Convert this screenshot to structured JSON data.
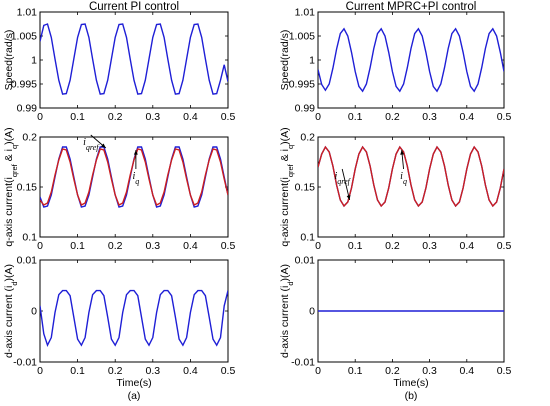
{
  "chart_data": [
    {
      "type": "line",
      "id": "a-speed",
      "title": "Current PI control",
      "ylabel": "Speed(rad/s)",
      "xlabel": "",
      "xlim": [
        0,
        0.5
      ],
      "ylim": [
        0.99,
        1.01
      ],
      "xticks": [
        "0",
        "0.1",
        "0.2",
        "0.3",
        "0.4",
        "0.5"
      ],
      "yticks": [
        "0.99",
        "0.995",
        "1",
        "1.005",
        "1.01"
      ],
      "series": [
        {
          "color": "#1f1fd6",
          "x": [
            0,
            0.01,
            0.02,
            0.03,
            0.04,
            0.05,
            0.06,
            0.07,
            0.08,
            0.09,
            0.1,
            0.11,
            0.12,
            0.13,
            0.14,
            0.15,
            0.16,
            0.17,
            0.18,
            0.19,
            0.2,
            0.21,
            0.22,
            0.23,
            0.24,
            0.25,
            0.26,
            0.27,
            0.28,
            0.29,
            0.3,
            0.31,
            0.32,
            0.33,
            0.34,
            0.35,
            0.36,
            0.37,
            0.38,
            0.39,
            0.4,
            0.41,
            0.42,
            0.43,
            0.44,
            0.45,
            0.46,
            0.47,
            0.48,
            0.49,
            0.5
          ],
          "y": [
            1.0039,
            1.0072,
            1.0075,
            1.0047,
            1.0002,
            0.9958,
            0.9929,
            0.993,
            0.9958,
            1.0002,
            1.0047,
            1.0074,
            1.0075,
            1.0047,
            1.0002,
            0.9958,
            0.9929,
            0.993,
            0.9958,
            1.0002,
            1.0047,
            1.0074,
            1.0075,
            1.0047,
            1.0002,
            0.9958,
            0.9929,
            0.993,
            0.9958,
            1.0002,
            1.0047,
            1.0074,
            1.0075,
            1.0047,
            1.0002,
            0.9958,
            0.9929,
            0.993,
            0.9958,
            1.0002,
            1.0047,
            1.0074,
            1.0075,
            1.0047,
            1.0002,
            0.9958,
            0.9929,
            0.993,
            0.9958,
            0.999,
            0.9955
          ]
        }
      ]
    },
    {
      "type": "line",
      "id": "b-speed",
      "title": "Current MPRC+PI control",
      "ylabel": "Speed(rad/s)",
      "xlabel": "",
      "xlim": [
        0,
        0.5
      ],
      "ylim": [
        0.99,
        1.01
      ],
      "xticks": [
        "0",
        "0.1",
        "0.2",
        "0.3",
        "0.4",
        "0.5"
      ],
      "yticks": [
        "0.99",
        "0.995",
        "1",
        "1.005",
        "1.01"
      ],
      "series": [
        {
          "color": "#1f1fd6",
          "x": [
            0,
            0.01,
            0.02,
            0.03,
            0.04,
            0.05,
            0.06,
            0.07,
            0.08,
            0.09,
            0.1,
            0.11,
            0.12,
            0.13,
            0.14,
            0.15,
            0.16,
            0.17,
            0.18,
            0.19,
            0.2,
            0.21,
            0.22,
            0.23,
            0.24,
            0.25,
            0.26,
            0.27,
            0.28,
            0.29,
            0.3,
            0.31,
            0.32,
            0.33,
            0.34,
            0.35,
            0.36,
            0.37,
            0.38,
            0.39,
            0.4,
            0.41,
            0.42,
            0.43,
            0.44,
            0.45,
            0.46,
            0.47,
            0.48,
            0.49,
            0.5
          ],
          "y": [
            0.998,
            0.9949,
            0.9937,
            0.995,
            0.9983,
            1.0023,
            1.0055,
            1.0065,
            1.005,
            1.0016,
            0.9976,
            0.9945,
            0.9935,
            0.995,
            0.9984,
            1.0024,
            1.0055,
            1.0065,
            1.005,
            1.0016,
            0.9976,
            0.9945,
            0.9935,
            0.995,
            0.9984,
            1.0024,
            1.0055,
            1.0065,
            1.005,
            1.0016,
            0.9976,
            0.9945,
            0.9935,
            0.995,
            0.9984,
            1.0024,
            1.0055,
            1.0065,
            1.005,
            1.0016,
            0.9976,
            0.9945,
            0.9935,
            0.995,
            0.9984,
            1.0024,
            1.0055,
            1.0065,
            1.005,
            1.0016,
            0.9976
          ]
        }
      ]
    },
    {
      "type": "line",
      "id": "a-iq",
      "title": "",
      "ylabel": "q-axis current(i_qref & i_q)(A)",
      "xlabel": "",
      "xlim": [
        0,
        0.5
      ],
      "ylim": [
        0.1,
        0.2
      ],
      "xticks": [
        "0",
        "0.1",
        "0.2",
        "0.3",
        "0.4",
        "0.5"
      ],
      "yticks": [
        "0.1",
        "0.15",
        "0.2"
      ],
      "series": [
        {
          "color": "#1f1fd6",
          "x": [
            0,
            0.01,
            0.02,
            0.03,
            0.04,
            0.05,
            0.06,
            0.07,
            0.08,
            0.09,
            0.1,
            0.11,
            0.12,
            0.13,
            0.14,
            0.15,
            0.16,
            0.17,
            0.18,
            0.19,
            0.2,
            0.21,
            0.22,
            0.23,
            0.24,
            0.25,
            0.26,
            0.27,
            0.28,
            0.29,
            0.3,
            0.31,
            0.32,
            0.33,
            0.34,
            0.35,
            0.36,
            0.37,
            0.38,
            0.39,
            0.4,
            0.41,
            0.42,
            0.43,
            0.44,
            0.45,
            0.46,
            0.47,
            0.48,
            0.49,
            0.5
          ],
          "y": [
            0.14,
            0.13,
            0.131,
            0.142,
            0.16,
            0.178,
            0.19,
            0.19,
            0.178,
            0.16,
            0.142,
            0.13,
            0.131,
            0.142,
            0.16,
            0.178,
            0.19,
            0.19,
            0.178,
            0.16,
            0.142,
            0.13,
            0.131,
            0.142,
            0.16,
            0.178,
            0.19,
            0.19,
            0.178,
            0.16,
            0.142,
            0.13,
            0.131,
            0.142,
            0.16,
            0.178,
            0.19,
            0.19,
            0.178,
            0.16,
            0.142,
            0.13,
            0.131,
            0.142,
            0.16,
            0.178,
            0.19,
            0.19,
            0.178,
            0.16,
            0.142
          ]
        },
        {
          "color": "#cc1f1f",
          "x": [
            0,
            0.01,
            0.02,
            0.03,
            0.04,
            0.05,
            0.06,
            0.07,
            0.08,
            0.09,
            0.1,
            0.11,
            0.12,
            0.13,
            0.14,
            0.15,
            0.16,
            0.17,
            0.18,
            0.19,
            0.2,
            0.21,
            0.22,
            0.23,
            0.24,
            0.25,
            0.26,
            0.27,
            0.28,
            0.29,
            0.3,
            0.31,
            0.32,
            0.33,
            0.34,
            0.35,
            0.36,
            0.37,
            0.38,
            0.39,
            0.4,
            0.41,
            0.42,
            0.43,
            0.44,
            0.45,
            0.46,
            0.47,
            0.48,
            0.49,
            0.5
          ],
          "y": [
            0.137,
            0.132,
            0.134,
            0.145,
            0.162,
            0.177,
            0.188,
            0.187,
            0.175,
            0.158,
            0.142,
            0.132,
            0.134,
            0.145,
            0.162,
            0.177,
            0.188,
            0.187,
            0.175,
            0.158,
            0.142,
            0.132,
            0.134,
            0.145,
            0.162,
            0.177,
            0.188,
            0.187,
            0.175,
            0.158,
            0.142,
            0.132,
            0.134,
            0.145,
            0.162,
            0.177,
            0.188,
            0.187,
            0.175,
            0.158,
            0.142,
            0.132,
            0.134,
            0.145,
            0.162,
            0.177,
            0.188,
            0.187,
            0.175,
            0.158,
            0.142
          ]
        }
      ],
      "annotations": [
        {
          "label": "i_qref",
          "x": 0.135,
          "y": 0.192,
          "target_x": 0.175,
          "target_y": 0.189
        },
        {
          "label": "i_q",
          "x": 0.255,
          "y": 0.158,
          "target_x": 0.255,
          "target_y": 0.187
        }
      ]
    },
    {
      "type": "line",
      "id": "b-iq",
      "title": "",
      "ylabel": "q-axis current(i_qref & i_q)(A)",
      "xlabel": "",
      "xlim": [
        0,
        0.5
      ],
      "ylim": [
        0.1,
        0.2
      ],
      "xticks": [
        "0",
        "0.1",
        "0.2",
        "0.3",
        "0.4",
        "0.5"
      ],
      "yticks": [
        "0.1",
        "0.15",
        "0.2"
      ],
      "series": [
        {
          "color": "#1f1fd6",
          "x": [
            0,
            0.01,
            0.02,
            0.03,
            0.04,
            0.05,
            0.06,
            0.07,
            0.08,
            0.09,
            0.1,
            0.11,
            0.12,
            0.13,
            0.14,
            0.15,
            0.16,
            0.17,
            0.18,
            0.19,
            0.2,
            0.21,
            0.22,
            0.23,
            0.24,
            0.25,
            0.26,
            0.27,
            0.28,
            0.29,
            0.3,
            0.31,
            0.32,
            0.33,
            0.34,
            0.35,
            0.36,
            0.37,
            0.38,
            0.39,
            0.4,
            0.41,
            0.42,
            0.43,
            0.44,
            0.45,
            0.46,
            0.47,
            0.48,
            0.49,
            0.5
          ],
          "y": [
            0.17,
            0.183,
            0.19,
            0.185,
            0.171,
            0.152,
            0.137,
            0.131,
            0.135,
            0.149,
            0.168,
            0.183,
            0.19,
            0.185,
            0.171,
            0.152,
            0.137,
            0.131,
            0.135,
            0.149,
            0.168,
            0.183,
            0.19,
            0.185,
            0.171,
            0.152,
            0.137,
            0.131,
            0.135,
            0.149,
            0.168,
            0.183,
            0.19,
            0.185,
            0.171,
            0.152,
            0.137,
            0.131,
            0.135,
            0.149,
            0.168,
            0.183,
            0.19,
            0.185,
            0.171,
            0.152,
            0.137,
            0.131,
            0.135,
            0.149,
            0.168
          ]
        },
        {
          "color": "#cc1f1f",
          "x": [
            0,
            0.01,
            0.02,
            0.03,
            0.04,
            0.05,
            0.06,
            0.07,
            0.08,
            0.09,
            0.1,
            0.11,
            0.12,
            0.13,
            0.14,
            0.15,
            0.16,
            0.17,
            0.18,
            0.19,
            0.2,
            0.21,
            0.22,
            0.23,
            0.24,
            0.25,
            0.26,
            0.27,
            0.28,
            0.29,
            0.3,
            0.31,
            0.32,
            0.33,
            0.34,
            0.35,
            0.36,
            0.37,
            0.38,
            0.39,
            0.4,
            0.41,
            0.42,
            0.43,
            0.44,
            0.45,
            0.46,
            0.47,
            0.48,
            0.49,
            0.5
          ],
          "y": [
            0.17,
            0.183,
            0.19,
            0.185,
            0.171,
            0.152,
            0.137,
            0.131,
            0.135,
            0.149,
            0.168,
            0.183,
            0.19,
            0.185,
            0.171,
            0.152,
            0.137,
            0.131,
            0.135,
            0.149,
            0.168,
            0.183,
            0.19,
            0.185,
            0.171,
            0.152,
            0.137,
            0.131,
            0.135,
            0.149,
            0.168,
            0.183,
            0.19,
            0.185,
            0.171,
            0.152,
            0.137,
            0.131,
            0.135,
            0.149,
            0.168,
            0.183,
            0.19,
            0.185,
            0.171,
            0.152,
            0.137,
            0.131,
            0.135,
            0.149,
            0.168
          ]
        }
      ],
      "annotations": [
        {
          "label": "i_qref",
          "x": 0.065,
          "y": 0.158,
          "target_x": 0.085,
          "target_y": 0.137
        },
        {
          "label": "i_q",
          "x": 0.23,
          "y": 0.158,
          "target_x": 0.225,
          "target_y": 0.187
        }
      ]
    },
    {
      "type": "line",
      "id": "a-id",
      "title": "",
      "ylabel": "d-axis current (i_d)(A)",
      "xlabel": "Time(s)",
      "xlim": [
        0,
        0.5
      ],
      "ylim": [
        -0.01,
        0.01
      ],
      "xticks": [
        "0",
        "0.1",
        "0.2",
        "0.3",
        "0.4",
        "0.5"
      ],
      "yticks": [
        "-0.01",
        "0",
        "0.01"
      ],
      "series": [
        {
          "color": "#1f1fd6",
          "x": [
            0,
            0.01,
            0.02,
            0.03,
            0.04,
            0.05,
            0.06,
            0.07,
            0.08,
            0.09,
            0.1,
            0.11,
            0.12,
            0.13,
            0.14,
            0.15,
            0.16,
            0.17,
            0.18,
            0.19,
            0.2,
            0.21,
            0.22,
            0.23,
            0.24,
            0.25,
            0.26,
            0.27,
            0.28,
            0.29,
            0.3,
            0.31,
            0.32,
            0.33,
            0.34,
            0.35,
            0.36,
            0.37,
            0.38,
            0.39,
            0.4,
            0.41,
            0.42,
            0.43,
            0.44,
            0.45,
            0.46,
            0.47,
            0.48,
            0.49,
            0.5
          ],
          "y": [
            0.001,
            -0.0045,
            -0.0067,
            -0.0052,
            -0.0003,
            0.0032,
            0.004,
            0.004,
            0.003,
            -0.0012,
            -0.0055,
            -0.0067,
            -0.0052,
            -0.0003,
            0.0032,
            0.004,
            0.004,
            0.003,
            -0.0012,
            -0.0055,
            -0.0067,
            -0.0052,
            -0.0003,
            0.0032,
            0.004,
            0.004,
            0.003,
            -0.0012,
            -0.0055,
            -0.0067,
            -0.0052,
            -0.0003,
            0.0032,
            0.004,
            0.004,
            0.003,
            -0.0012,
            -0.0055,
            -0.0067,
            -0.0052,
            -0.0003,
            0.0032,
            0.004,
            0.004,
            0.003,
            -0.0012,
            -0.0055,
            -0.0067,
            -0.0052,
            0.001,
            0.004
          ]
        }
      ],
      "panel_label": "(a)"
    },
    {
      "type": "line",
      "id": "b-id",
      "title": "",
      "ylabel": "d-axis current (i_d)(A)",
      "xlabel": "Time(s)",
      "xlim": [
        0,
        0.5
      ],
      "ylim": [
        -0.01,
        0.01
      ],
      "xticks": [
        "0",
        "0.1",
        "0.2",
        "0.3",
        "0.4",
        "0.5"
      ],
      "yticks": [
        "-0.01",
        "0",
        "0.01"
      ],
      "series": [
        {
          "color": "#1f1fd6",
          "x": [
            0,
            0.5
          ],
          "y": [
            0,
            0
          ]
        }
      ],
      "panel_label": "(b)"
    }
  ]
}
